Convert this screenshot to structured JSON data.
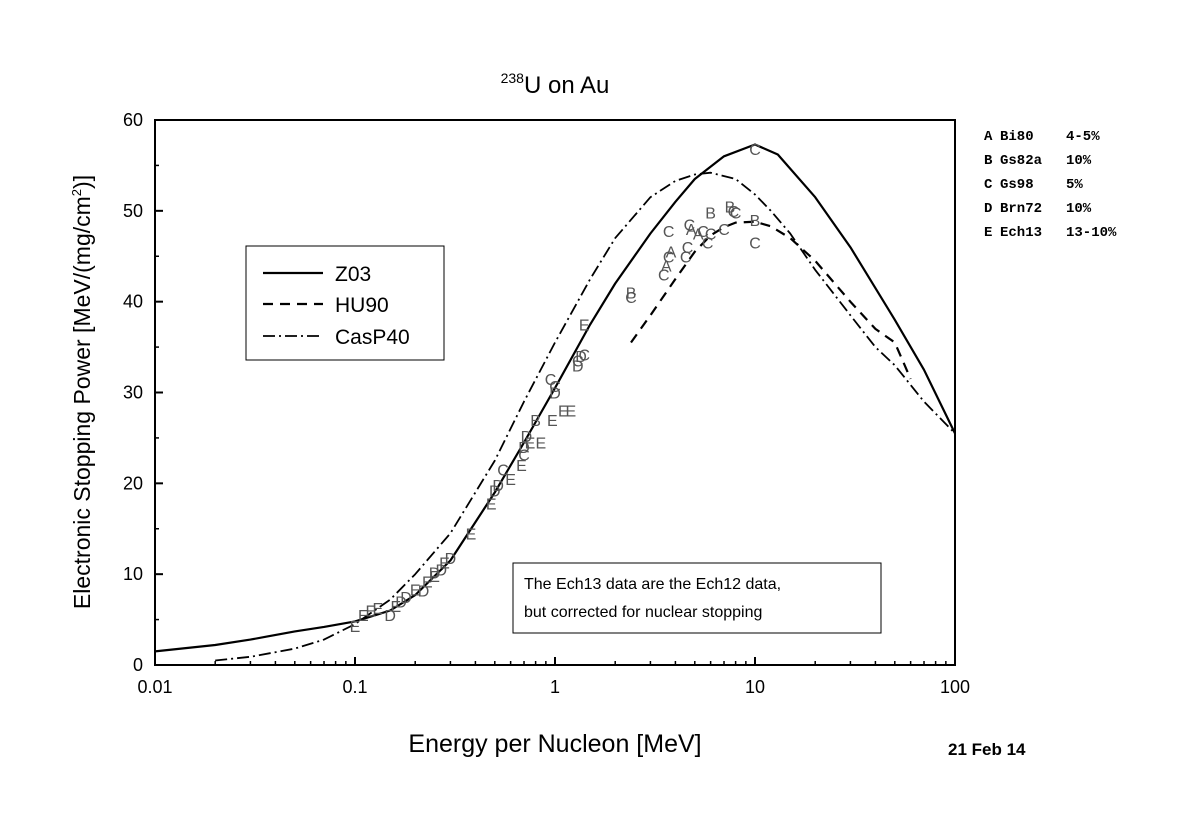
{
  "chart_data": {
    "type": "line",
    "title": {
      "sup": "238",
      "main": "U on Au"
    },
    "xlabel": "Energy per Nucleon [MeV]",
    "ylabel": {
      "pre": "Electronic Stopping Power [MeV/(mg/cm",
      "sup": "2",
      "post": ")]"
    },
    "xscale": "log",
    "xlim": [
      0.01,
      100
    ],
    "ylim": [
      0,
      60
    ],
    "xticks": [
      0.01,
      0.1,
      1,
      10,
      100
    ],
    "xtick_labels": [
      "0.01",
      "0.1",
      "1",
      "10",
      "100"
    ],
    "yticks": [
      0,
      10,
      20,
      30,
      40,
      50,
      60
    ],
    "ytick_labels": [
      "0",
      "10",
      "20",
      "30",
      "40",
      "50",
      "60"
    ],
    "legend_placement": "upper-left",
    "series": [
      {
        "name": "Z03",
        "style": "solid",
        "x": [
          0.01,
          0.02,
          0.03,
          0.05,
          0.07,
          0.1,
          0.15,
          0.2,
          0.3,
          0.5,
          0.7,
          1,
          1.5,
          2,
          3,
          4,
          5,
          7,
          10,
          13,
          20,
          30,
          50,
          70,
          100
        ],
        "y": [
          1.5,
          2.2,
          2.8,
          3.7,
          4.2,
          4.8,
          6.0,
          7.7,
          11.5,
          19.0,
          24.5,
          30.5,
          37.5,
          42.0,
          47.5,
          51.0,
          53.5,
          56.0,
          57.3,
          56.2,
          51.5,
          46.0,
          38.0,
          32.5,
          25.5
        ]
      },
      {
        "name": "HU90",
        "style": "dashed",
        "x": [
          2.4,
          3,
          4,
          5,
          6,
          7,
          8,
          10,
          12,
          15,
          20,
          30,
          40,
          50,
          60
        ],
        "y": [
          35.5,
          38.5,
          42.5,
          45.5,
          47.3,
          48.2,
          48.7,
          48.8,
          48.3,
          47.0,
          44.5,
          40.0,
          37.0,
          35.5,
          31.5
        ]
      },
      {
        "name": "CasP40",
        "style": "dashdot",
        "x": [
          0.02,
          0.03,
          0.05,
          0.07,
          0.1,
          0.15,
          0.2,
          0.3,
          0.5,
          0.7,
          1,
          1.5,
          2,
          3,
          4,
          5,
          6,
          8,
          10,
          12,
          15,
          20,
          30,
          40,
          50,
          70,
          100
        ],
        "y": [
          0.5,
          0.9,
          1.8,
          2.8,
          4.5,
          7.2,
          10.0,
          14.5,
          22.5,
          29.0,
          35.5,
          42.5,
          47.0,
          51.5,
          53.3,
          54.0,
          54.2,
          53.5,
          51.8,
          50.0,
          47.5,
          43.5,
          38.5,
          35.0,
          33.0,
          29.0,
          25.5
        ]
      }
    ],
    "annotation": [
      "The Ech13 data are the Ech12 data,",
      "but corrected for nuclear stopping"
    ],
    "datasets_legend": [
      {
        "letter": "A",
        "ref": "Bi80",
        "err": "4-5%"
      },
      {
        "letter": "B",
        "ref": "Gs82a",
        "err": "10%"
      },
      {
        "letter": "C",
        "ref": "Gs98",
        "err": "5%"
      },
      {
        "letter": "D",
        "ref": "Brn72",
        "err": "10%"
      },
      {
        "letter": "E",
        "ref": "Ech13",
        "err": "13-10%"
      }
    ],
    "points": [
      {
        "l": "E",
        "x": 0.1,
        "y": 4.3
      },
      {
        "l": "E",
        "x": 0.11,
        "y": 5.5
      },
      {
        "l": "E",
        "x": 0.12,
        "y": 6.0
      },
      {
        "l": "E",
        "x": 0.13,
        "y": 6.3
      },
      {
        "l": "D",
        "x": 0.15,
        "y": 5.5
      },
      {
        "l": "E",
        "x": 0.16,
        "y": 6.5
      },
      {
        "l": "D",
        "x": 0.17,
        "y": 7.0
      },
      {
        "l": "D",
        "x": 0.18,
        "y": 7.5
      },
      {
        "l": "E",
        "x": 0.2,
        "y": 8.3
      },
      {
        "l": "D",
        "x": 0.22,
        "y": 8.2
      },
      {
        "l": "E",
        "x": 0.23,
        "y": 9.2
      },
      {
        "l": "D",
        "x": 0.25,
        "y": 10.2
      },
      {
        "l": "E",
        "x": 0.25,
        "y": 9.8
      },
      {
        "l": "D",
        "x": 0.27,
        "y": 10.5
      },
      {
        "l": "E",
        "x": 0.28,
        "y": 11.3
      },
      {
        "l": "D",
        "x": 0.3,
        "y": 11.8
      },
      {
        "l": "E",
        "x": 0.38,
        "y": 14.5
      },
      {
        "l": "E",
        "x": 0.48,
        "y": 17.8
      },
      {
        "l": "D",
        "x": 0.5,
        "y": 19.2
      },
      {
        "l": "D",
        "x": 0.52,
        "y": 19.8
      },
      {
        "l": "C",
        "x": 0.55,
        "y": 21.5
      },
      {
        "l": "E",
        "x": 0.6,
        "y": 20.5
      },
      {
        "l": "E",
        "x": 0.68,
        "y": 22.0
      },
      {
        "l": "C",
        "x": 0.7,
        "y": 23.2
      },
      {
        "l": "D",
        "x": 0.7,
        "y": 24.0
      },
      {
        "l": "D",
        "x": 0.72,
        "y": 25.2
      },
      {
        "l": "E",
        "x": 0.75,
        "y": 24.5
      },
      {
        "l": "B",
        "x": 0.8,
        "y": 27.0
      },
      {
        "l": "E",
        "x": 0.85,
        "y": 24.5
      },
      {
        "l": "C",
        "x": 0.95,
        "y": 31.5
      },
      {
        "l": "E",
        "x": 0.97,
        "y": 27.0
      },
      {
        "l": "D",
        "x": 1.0,
        "y": 30.0
      },
      {
        "l": "C",
        "x": 1.0,
        "y": 30.7
      },
      {
        "l": "E",
        "x": 1.1,
        "y": 28.0
      },
      {
        "l": "E",
        "x": 1.2,
        "y": 28.0
      },
      {
        "l": "D",
        "x": 1.3,
        "y": 33.0
      },
      {
        "l": "D",
        "x": 1.35,
        "y": 34.0
      },
      {
        "l": "C",
        "x": 1.3,
        "y": 33.5
      },
      {
        "l": "C",
        "x": 1.4,
        "y": 34.2
      },
      {
        "l": "E",
        "x": 1.4,
        "y": 37.5
      },
      {
        "l": "B",
        "x": 2.4,
        "y": 41.0
      },
      {
        "l": "C",
        "x": 2.4,
        "y": 40.5
      },
      {
        "l": "C",
        "x": 3.5,
        "y": 43.0
      },
      {
        "l": "A",
        "x": 3.6,
        "y": 44.0
      },
      {
        "l": "C",
        "x": 3.7,
        "y": 47.8
      },
      {
        "l": "A",
        "x": 3.8,
        "y": 45.5
      },
      {
        "l": "C",
        "x": 3.7,
        "y": 45.0
      },
      {
        "l": "C",
        "x": 4.5,
        "y": 45.0
      },
      {
        "l": "C",
        "x": 4.7,
        "y": 48.5
      },
      {
        "l": "A",
        "x": 4.8,
        "y": 48.0
      },
      {
        "l": "C",
        "x": 4.6,
        "y": 46.0
      },
      {
        "l": "A",
        "x": 5.2,
        "y": 47.5
      },
      {
        "l": "C",
        "x": 5.5,
        "y": 47.8
      },
      {
        "l": "B",
        "x": 6.0,
        "y": 49.8
      },
      {
        "l": "C",
        "x": 6.0,
        "y": 47.5
      },
      {
        "l": "C",
        "x": 5.8,
        "y": 46.5
      },
      {
        "l": "C",
        "x": 7.0,
        "y": 48.0
      },
      {
        "l": "B",
        "x": 7.5,
        "y": 50.5
      },
      {
        "l": "C",
        "x": 7.8,
        "y": 50.0
      },
      {
        "l": "C",
        "x": 8.0,
        "y": 49.8
      },
      {
        "l": "B",
        "x": 10.0,
        "y": 49.0
      },
      {
        "l": "C",
        "x": 10.0,
        "y": 46.5
      },
      {
        "l": "C",
        "x": 10.0,
        "y": 56.8
      }
    ]
  },
  "date_stamp": "21 Feb 14"
}
